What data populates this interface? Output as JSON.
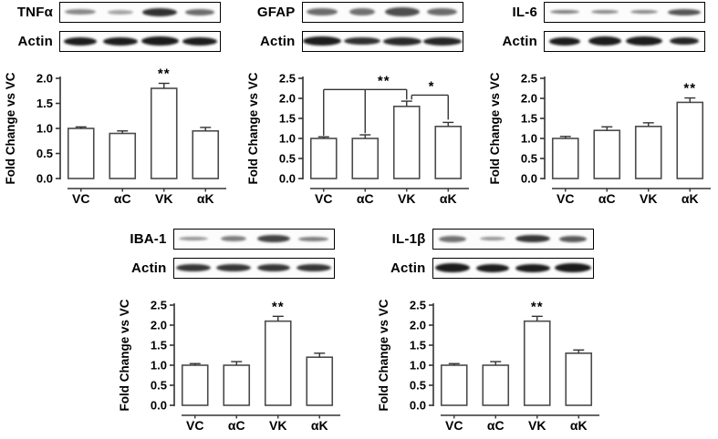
{
  "figure": {
    "background": "#ffffff",
    "bar_fill": "#ffffff",
    "bar_stroke": "#4a4a4a",
    "axis_color": "#333333",
    "text_color": "#000000",
    "band_color": "#141414",
    "actin_label": "Actin",
    "panels": [
      {
        "id": "tnfa",
        "row": "top",
        "protein": "TNFα",
        "chart_index": 0,
        "blot_bands": [
          {
            "w": 34,
            "h": 6,
            "o": 0.5
          },
          {
            "w": 28,
            "h": 5,
            "o": 0.38
          },
          {
            "w": 38,
            "h": 9,
            "o": 0.88
          },
          {
            "w": 32,
            "h": 7,
            "o": 0.62
          }
        ],
        "actin_bands": [
          {
            "w": 36,
            "h": 9,
            "o": 0.96
          },
          {
            "w": 38,
            "h": 9,
            "o": 0.96
          },
          {
            "w": 41,
            "h": 10,
            "o": 0.97
          },
          {
            "w": 38,
            "h": 9,
            "o": 0.96
          }
        ]
      },
      {
        "id": "gfap",
        "row": "top",
        "protein": "GFAP",
        "chart_index": 1,
        "blot_bands": [
          {
            "w": 34,
            "h": 8,
            "o": 0.62
          },
          {
            "w": 28,
            "h": 8,
            "o": 0.6
          },
          {
            "w": 38,
            "h": 10,
            "o": 0.75
          },
          {
            "w": 33,
            "h": 8,
            "o": 0.62
          }
        ],
        "actin_bands": [
          {
            "w": 42,
            "h": 10,
            "o": 0.96
          },
          {
            "w": 40,
            "h": 8,
            "o": 0.88
          },
          {
            "w": 42,
            "h": 9,
            "o": 0.9
          },
          {
            "w": 42,
            "h": 9,
            "o": 0.92
          }
        ]
      },
      {
        "id": "il6",
        "row": "top",
        "protein": "IL-6",
        "chart_index": 2,
        "blot_bands": [
          {
            "w": 32,
            "h": 4,
            "o": 0.55
          },
          {
            "w": 30,
            "h": 4,
            "o": 0.5
          },
          {
            "w": 30,
            "h": 4,
            "o": 0.5
          },
          {
            "w": 36,
            "h": 7,
            "o": 0.72
          }
        ],
        "actin_bands": [
          {
            "w": 34,
            "h": 9,
            "o": 0.96
          },
          {
            "w": 36,
            "h": 10,
            "o": 0.96
          },
          {
            "w": 40,
            "h": 10,
            "o": 0.96
          },
          {
            "w": 32,
            "h": 8,
            "o": 0.93
          }
        ]
      },
      {
        "id": "iba1",
        "row": "bottom",
        "protein": "IBA-1",
        "chart_index": 3,
        "blot_bands": [
          {
            "w": 32,
            "h": 4,
            "o": 0.45
          },
          {
            "w": 28,
            "h": 6,
            "o": 0.55
          },
          {
            "w": 36,
            "h": 8,
            "o": 0.8
          },
          {
            "w": 33,
            "h": 5,
            "o": 0.55
          }
        ],
        "actin_bands": [
          {
            "w": 38,
            "h": 8,
            "o": 0.85
          },
          {
            "w": 38,
            "h": 8,
            "o": 0.85
          },
          {
            "w": 36,
            "h": 8,
            "o": 0.85
          },
          {
            "w": 38,
            "h": 8,
            "o": 0.85
          }
        ]
      },
      {
        "id": "il1b",
        "row": "bottom",
        "protein": "IL-1β",
        "chart_index": 4,
        "blot_bands": [
          {
            "w": 30,
            "h": 7,
            "o": 0.6
          },
          {
            "w": 28,
            "h": 4,
            "o": 0.45
          },
          {
            "w": 38,
            "h": 8,
            "o": 0.85
          },
          {
            "w": 30,
            "h": 7,
            "o": 0.7
          }
        ],
        "actin_bands": [
          {
            "w": 38,
            "h": 10,
            "o": 0.97
          },
          {
            "w": 36,
            "h": 9,
            "o": 0.96
          },
          {
            "w": 38,
            "h": 9,
            "o": 0.96
          },
          {
            "w": 40,
            "h": 10,
            "o": 0.97
          }
        ]
      }
    ]
  },
  "chart_data": [
    {
      "type": "bar",
      "title": "TNFα",
      "categories": [
        "VC",
        "αC",
        "VK",
        "αK"
      ],
      "values": [
        1.0,
        0.9,
        1.8,
        0.95
      ],
      "errors": [
        0.03,
        0.05,
        0.1,
        0.07
      ],
      "ylabel": "Fold Change vs VC",
      "ylim": [
        0,
        2.0
      ],
      "ytick_step": 0.5,
      "grid": false,
      "legend": false,
      "significance": [
        {
          "label": "**",
          "above_bar": "VK",
          "bar_index": 2
        }
      ],
      "brackets": []
    },
    {
      "type": "bar",
      "title": "GFAP",
      "categories": [
        "VC",
        "αC",
        "VK",
        "αK"
      ],
      "values": [
        1.0,
        1.0,
        1.8,
        1.3
      ],
      "errors": [
        0.04,
        0.09,
        0.13,
        0.1
      ],
      "ylabel": "Fold Change vs VC",
      "ylim": [
        0,
        2.5
      ],
      "ytick_step": 0.5,
      "grid": false,
      "legend": false,
      "significance": [],
      "brackets": [
        {
          "y": 2.22,
          "x1": 0,
          "x2": 2,
          "label": "**",
          "label_x": 1.45,
          "drops": [
            {
              "x": 0,
              "to": 1.07
            },
            {
              "x": 1,
              "to": 1.13
            },
            {
              "x": 2,
              "to": 1.97
            }
          ]
        },
        {
          "y": 2.08,
          "x1": 2.12,
          "x2": 3,
          "label": "*",
          "label_x": 2.6,
          "drops": [
            {
              "x": 2.12,
              "to": 1.97
            },
            {
              "x": 3,
              "to": 1.47
            }
          ]
        }
      ]
    },
    {
      "type": "bar",
      "title": "IL-6",
      "categories": [
        "VC",
        "αC",
        "VK",
        "αK"
      ],
      "values": [
        1.0,
        1.2,
        1.3,
        1.9
      ],
      "errors": [
        0.05,
        0.09,
        0.09,
        0.11
      ],
      "ylabel": "Fold Change vs VC",
      "ylim": [
        0,
        2.5
      ],
      "ytick_step": 0.5,
      "grid": false,
      "legend": false,
      "significance": [
        {
          "label": "**",
          "above_bar": "αK",
          "bar_index": 3
        }
      ],
      "brackets": []
    },
    {
      "type": "bar",
      "title": "IBA-1",
      "categories": [
        "VC",
        "αC",
        "VK",
        "αK"
      ],
      "values": [
        1.0,
        1.0,
        2.1,
        1.2
      ],
      "errors": [
        0.04,
        0.09,
        0.12,
        0.1
      ],
      "ylabel": "Fold Change vs VC",
      "ylim": [
        0,
        2.5
      ],
      "ytick_step": 0.5,
      "grid": false,
      "legend": false,
      "significance": [
        {
          "label": "**",
          "above_bar": "VK",
          "bar_index": 2
        }
      ],
      "brackets": []
    },
    {
      "type": "bar",
      "title": "IL-1β",
      "categories": [
        "VC",
        "αC",
        "VK",
        "αK"
      ],
      "values": [
        1.0,
        1.0,
        2.1,
        1.3
      ],
      "errors": [
        0.04,
        0.09,
        0.12,
        0.08
      ],
      "ylabel": "Fold Change vs VC",
      "ylim": [
        0,
        2.5
      ],
      "ytick_step": 0.5,
      "grid": false,
      "legend": false,
      "significance": [
        {
          "label": "**",
          "above_bar": "VK",
          "bar_index": 2
        }
      ],
      "brackets": []
    }
  ]
}
